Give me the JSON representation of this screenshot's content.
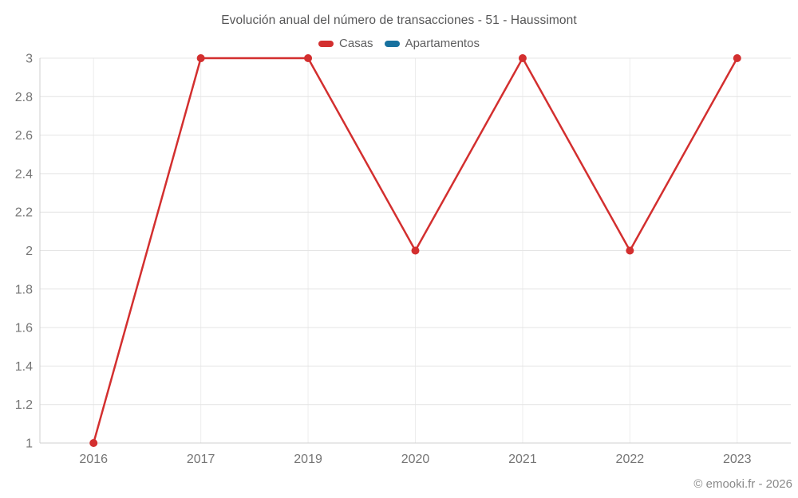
{
  "title": "Evolución anual del número de transacciones - 51 - Haussimont",
  "legend": {
    "items": [
      {
        "label": "Casas",
        "color": "#d32f2f"
      },
      {
        "label": "Apartamentos",
        "color": "#17719f"
      }
    ]
  },
  "footer": "© emooki.fr - 2026",
  "colors": {
    "axis_line": "#cfcfcf",
    "h_gridline": "#e4e4e4",
    "v_gridline": "#ededed",
    "tick_label": "#757575"
  },
  "chart_data": {
    "type": "line",
    "title": "Evolución anual del número de transacciones - 51 - Haussimont",
    "categories": [
      "2016",
      "2017",
      "2019",
      "2020",
      "2021",
      "2022",
      "2023"
    ],
    "series": [
      {
        "name": "Casas",
        "color": "#d32f2f",
        "values": [
          1,
          3,
          3,
          2,
          3,
          2,
          3
        ]
      },
      {
        "name": "Apartamentos",
        "color": "#17719f",
        "values": []
      }
    ],
    "xlabel": "",
    "ylabel": "",
    "ylim": [
      1,
      3
    ],
    "yticks": [
      1,
      1.2,
      1.4,
      1.6,
      1.8,
      2,
      2.2,
      2.4,
      2.6,
      2.8,
      3
    ],
    "grid": true,
    "legend_position": "top",
    "annotations": [
      "© emooki.fr - 2026"
    ]
  }
}
